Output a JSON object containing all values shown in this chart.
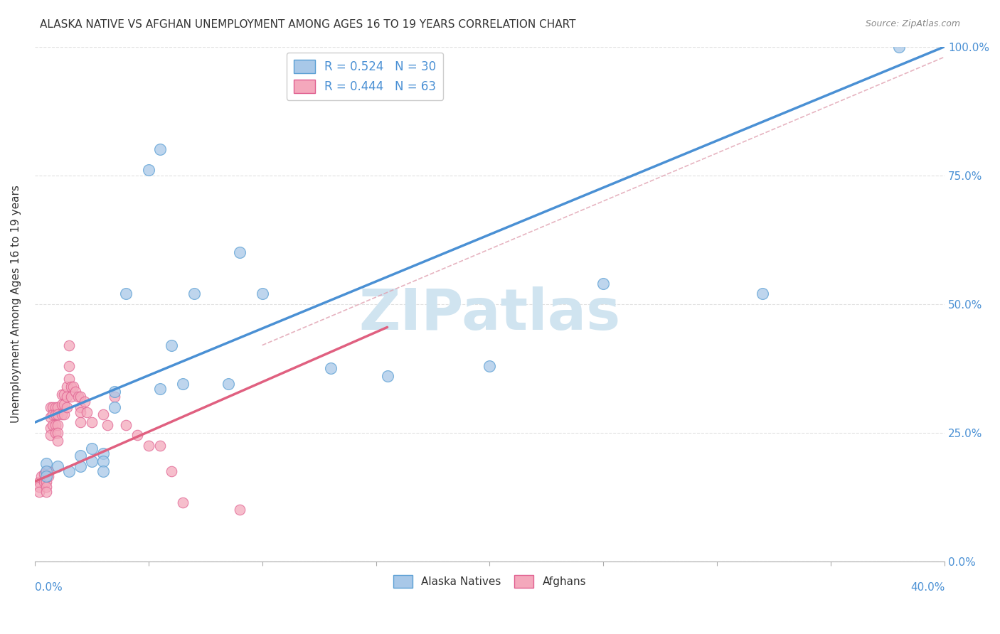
{
  "title": "ALASKA NATIVE VS AFGHAN UNEMPLOYMENT AMONG AGES 16 TO 19 YEARS CORRELATION CHART",
  "source": "Source: ZipAtlas.com",
  "ylabel": "Unemployment Among Ages 16 to 19 years",
  "xlim": [
    0.0,
    0.4
  ],
  "ylim": [
    0.0,
    1.0
  ],
  "blue_color": "#a8c8e8",
  "pink_color": "#f4a8bc",
  "blue_edge": "#5a9fd4",
  "pink_edge": "#e06090",
  "blue_line": "#4a90d4",
  "pink_line": "#e06080",
  "dash_color": "#e0a0b0",
  "watermark_color": "#d0e4f0",
  "alaska_natives_x": [
    0.005,
    0.005,
    0.005,
    0.01,
    0.015,
    0.02,
    0.02,
    0.025,
    0.025,
    0.03,
    0.03,
    0.03,
    0.035,
    0.035,
    0.04,
    0.05,
    0.055,
    0.055,
    0.06,
    0.065,
    0.07,
    0.085,
    0.09,
    0.1,
    0.13,
    0.155,
    0.2,
    0.25,
    0.32,
    0.38
  ],
  "alaska_natives_y": [
    0.19,
    0.175,
    0.165,
    0.185,
    0.175,
    0.205,
    0.185,
    0.22,
    0.195,
    0.21,
    0.195,
    0.175,
    0.33,
    0.3,
    0.52,
    0.76,
    0.8,
    0.335,
    0.42,
    0.345,
    0.52,
    0.345,
    0.6,
    0.52,
    0.375,
    0.36,
    0.38,
    0.54,
    0.52,
    1.0
  ],
  "afghans_x": [
    0.002,
    0.002,
    0.002,
    0.003,
    0.004,
    0.004,
    0.005,
    0.005,
    0.005,
    0.005,
    0.005,
    0.006,
    0.006,
    0.007,
    0.007,
    0.007,
    0.007,
    0.008,
    0.008,
    0.008,
    0.009,
    0.009,
    0.009,
    0.009,
    0.01,
    0.01,
    0.01,
    0.01,
    0.01,
    0.012,
    0.012,
    0.012,
    0.013,
    0.013,
    0.013,
    0.014,
    0.014,
    0.014,
    0.015,
    0.015,
    0.015,
    0.016,
    0.016,
    0.017,
    0.018,
    0.019,
    0.02,
    0.02,
    0.02,
    0.02,
    0.022,
    0.023,
    0.025,
    0.03,
    0.032,
    0.035,
    0.04,
    0.045,
    0.05,
    0.055,
    0.06,
    0.065,
    0.09
  ],
  "afghans_y": [
    0.155,
    0.145,
    0.135,
    0.165,
    0.17,
    0.155,
    0.175,
    0.165,
    0.155,
    0.145,
    0.135,
    0.175,
    0.165,
    0.3,
    0.28,
    0.26,
    0.245,
    0.3,
    0.285,
    0.265,
    0.3,
    0.285,
    0.265,
    0.25,
    0.3,
    0.285,
    0.265,
    0.25,
    0.235,
    0.325,
    0.305,
    0.285,
    0.325,
    0.305,
    0.285,
    0.34,
    0.32,
    0.3,
    0.42,
    0.38,
    0.355,
    0.34,
    0.32,
    0.34,
    0.33,
    0.32,
    0.32,
    0.3,
    0.29,
    0.27,
    0.31,
    0.29,
    0.27,
    0.285,
    0.265,
    0.32,
    0.265,
    0.245,
    0.225,
    0.225,
    0.175,
    0.115,
    0.1
  ],
  "blue_line_x": [
    0.0,
    0.4
  ],
  "blue_line_y": [
    0.27,
    1.0
  ],
  "pink_line_x": [
    0.0,
    0.155
  ],
  "pink_line_y": [
    0.155,
    0.455
  ],
  "dash_line_x": [
    0.1,
    0.4
  ],
  "dash_line_y": [
    0.42,
    0.98
  ]
}
